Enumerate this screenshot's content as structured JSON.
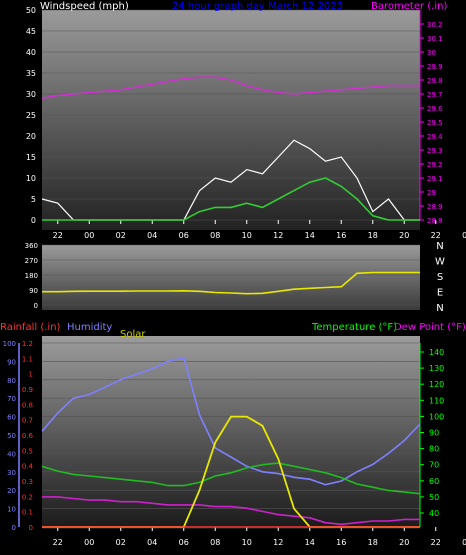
{
  "colors": {
    "wind": "#ffffff",
    "gust": "#ffffff",
    "avg_wind": "#33cc33",
    "barometer": "#cc33cc",
    "direction": "#e8e800",
    "rain": "#ff3333",
    "humidity": "#8080ff",
    "solar": "#e8e800",
    "temperature": "#22bb22",
    "dewpoint": "#cc22cc",
    "title": "#0000ff",
    "barometer_label": "#ff00ff",
    "rain_label": "#ff3333",
    "humidity_label": "#8080ff",
    "solar_label": "#cccc00",
    "temperature_label": "#00ff00",
    "dewpoint_label": "#ff00ff"
  },
  "time_ticks": [
    "22",
    "00",
    "02",
    "04",
    "06",
    "08",
    "10",
    "12",
    "14",
    "16",
    "18",
    "20",
    "22",
    "00"
  ],
  "chart_data": [
    {
      "type": "line",
      "title": "24 hour graph day   March 12 2023",
      "ylabel": "Windspeed (mph)",
      "y2label": "Barometer (.in)",
      "ylim": [
        0,
        50
      ],
      "y2lim": [
        28.8,
        30.3
      ],
      "y_ticks": [
        "0",
        "5",
        "10",
        "15",
        "20",
        "25",
        "30",
        "35",
        "40",
        "45",
        "50"
      ],
      "y2_ticks": [
        "28.8",
        "28.9",
        "29",
        "29.1",
        "29.2",
        "29.3",
        "29.4",
        "29.5",
        "29.6",
        "29.7",
        "29.8",
        "29.9",
        "30",
        "30.1",
        "30.2"
      ],
      "x": [
        21,
        22,
        23,
        24,
        25,
        26,
        27,
        28,
        29,
        30,
        31,
        32,
        33,
        34,
        35,
        36,
        37,
        38,
        39,
        40,
        41,
        42,
        43,
        44,
        45
      ],
      "series": [
        {
          "name": "Barometer",
          "axis": "y2",
          "values": [
            29.67,
            29.69,
            29.7,
            29.71,
            29.72,
            29.73,
            29.75,
            29.77,
            29.79,
            29.81,
            29.82,
            29.82,
            29.8,
            29.76,
            29.73,
            29.71,
            29.7,
            29.71,
            29.72,
            29.73,
            29.74,
            29.75,
            29.76,
            29.76,
            29.76
          ]
        },
        {
          "name": "Average wind",
          "axis": "y",
          "values": [
            0,
            0,
            0,
            0,
            0,
            0,
            0,
            0,
            0,
            0,
            2,
            3,
            3,
            4,
            3,
            5,
            7,
            9,
            10,
            8,
            5,
            1,
            0,
            0,
            0
          ]
        },
        {
          "name": "Gust",
          "axis": "y",
          "values": [
            5,
            4,
            0,
            0,
            0,
            0,
            0,
            0,
            0,
            0,
            7,
            10,
            9,
            12,
            11,
            15,
            19,
            17,
            14,
            15,
            10,
            2,
            5,
            0,
            0
          ]
        }
      ]
    },
    {
      "type": "line",
      "ylim": [
        0,
        360
      ],
      "y_ticks": [
        "0",
        "90",
        "180",
        "270",
        "360"
      ],
      "compass": [
        "N",
        "W",
        "S",
        "E",
        "N"
      ],
      "x": [
        21,
        22,
        23,
        24,
        25,
        26,
        27,
        28,
        29,
        30,
        31,
        32,
        33,
        34,
        35,
        36,
        37,
        38,
        39,
        40,
        41,
        42,
        43,
        44,
        45
      ],
      "series": [
        {
          "name": "Wind direction",
          "values": [
            80,
            80,
            82,
            83,
            83,
            83,
            84,
            84,
            84,
            85,
            82,
            75,
            72,
            68,
            70,
            82,
            95,
            100,
            105,
            110,
            190,
            195,
            195,
            195,
            195
          ]
        }
      ]
    },
    {
      "type": "line",
      "legend": [
        "Rainfall (.in)",
        "Humidity",
        "Solar",
        "Temperature (°F)",
        "Dew Point (°F)"
      ],
      "rain_ticks": [
        "0",
        "0.1",
        "0.2",
        "0.3",
        "0.4",
        "0.5",
        "0.6",
        "0.7",
        "0.8",
        "0.9",
        "1",
        "1.1",
        "1.2"
      ],
      "humidity_ticks": [
        "0",
        "10",
        "20",
        "30",
        "40",
        "50",
        "60",
        "70",
        "80",
        "90",
        "100"
      ],
      "temp_ticks": [
        "40",
        "50",
        "60",
        "70",
        "80",
        "90",
        "100",
        "110",
        "120",
        "130",
        "140"
      ],
      "x": [
        21,
        22,
        23,
        24,
        25,
        26,
        27,
        28,
        29,
        30,
        31,
        32,
        33,
        34,
        35,
        36,
        37,
        38,
        39,
        40,
        41,
        42,
        43,
        44,
        45
      ],
      "series": [
        {
          "name": "Humidity",
          "axis": "humidity",
          "values": [
            52,
            62,
            70,
            72,
            76,
            80,
            83,
            86,
            90,
            92,
            61,
            43,
            38,
            33,
            30,
            29,
            27,
            26,
            23,
            25,
            30,
            34,
            40,
            47,
            56
          ]
        },
        {
          "name": "Temperature",
          "axis": "temperature",
          "values": [
            69,
            66,
            64,
            63,
            62,
            61,
            60,
            59,
            57,
            57,
            59,
            63,
            65,
            68,
            70,
            71,
            69,
            67,
            65,
            62,
            58,
            56,
            54,
            53,
            52
          ]
        },
        {
          "name": "Dew Point",
          "axis": "temperature",
          "values": [
            50,
            50,
            49,
            48,
            48,
            47,
            47,
            46,
            45,
            45,
            45,
            44,
            44,
            43,
            41,
            39,
            38,
            37,
            34,
            33,
            34,
            35,
            35,
            36,
            36
          ]
        },
        {
          "name": "Solar",
          "axis": "humidity",
          "values": [
            0,
            0,
            0,
            0,
            0,
            0,
            0,
            0,
            0,
            0,
            20,
            46,
            60,
            60,
            55,
            37,
            10,
            0,
            0,
            0,
            0,
            0,
            0,
            0,
            0
          ]
        },
        {
          "name": "Rainfall",
          "axis": "rain",
          "values": [
            0,
            0,
            0,
            0,
            0,
            0,
            0,
            0,
            0,
            0,
            0,
            0,
            0,
            0,
            0,
            0,
            0,
            0,
            0,
            0,
            0,
            0,
            0,
            0,
            0
          ]
        }
      ]
    }
  ]
}
